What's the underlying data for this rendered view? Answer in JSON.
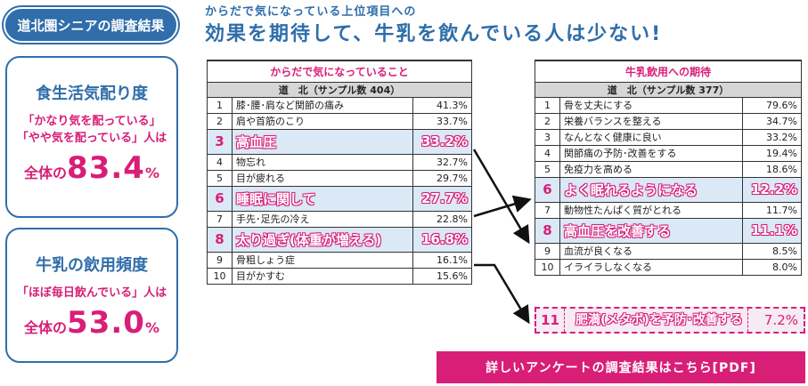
{
  "badge": "道北圏シニアの調査結果",
  "card1": {
    "title": "食生活気配り度",
    "line1": "「かなり気を配っている」",
    "line2": "「やや気を配っている」人は",
    "prefix": "全体の",
    "value": "83.4",
    "unit": "%"
  },
  "card2": {
    "title": "牛乳の飲用頻度",
    "line1": "「ほぼ毎日飲んでいる」人は",
    "prefix": "全体の",
    "value": "53.0",
    "unit": "%"
  },
  "header": {
    "sub": "からだで気になっている上位項目への",
    "main": "効果を期待して、牛乳を飲んでいる人は少ない!"
  },
  "tableA": {
    "title": "からだで気になっていること",
    "sample": "道　北（サンプル数 404）",
    "rows": [
      {
        "rank": "1",
        "label": "膝･腰･肩など関節の痛み",
        "value": "41.3%"
      },
      {
        "rank": "2",
        "label": "肩や首筋のこり",
        "value": "33.7%"
      },
      {
        "rank": "3",
        "label": "高血圧",
        "value": "33.2%"
      },
      {
        "rank": "4",
        "label": "物忘れ",
        "value": "32.7%"
      },
      {
        "rank": "5",
        "label": "目が疲れる",
        "value": "29.7%"
      },
      {
        "rank": "6",
        "label": "睡眠に関して",
        "value": "27.7%"
      },
      {
        "rank": "7",
        "label": "手先･足先の冷え",
        "value": "22.8%"
      },
      {
        "rank": "8",
        "label": "太り過ぎ(体重が増える)",
        "value": "16.8%"
      },
      {
        "rank": "9",
        "label": "骨粗しょう症",
        "value": "16.1%"
      },
      {
        "rank": "10",
        "label": "目がかすむ",
        "value": "15.6%"
      }
    ]
  },
  "tableB": {
    "title": "牛乳飲用への期待",
    "sample": "道　北（サンプル数 377）",
    "rows": [
      {
        "rank": "1",
        "label": "骨を丈夫にする",
        "value": "79.6%"
      },
      {
        "rank": "2",
        "label": "栄養バランスを整える",
        "value": "34.7%"
      },
      {
        "rank": "3",
        "label": "なんとなく健康に良い",
        "value": "33.2%"
      },
      {
        "rank": "4",
        "label": "関節痛の予防･改善をする",
        "value": "19.4%"
      },
      {
        "rank": "5",
        "label": "免疫力を高める",
        "value": "18.6%"
      },
      {
        "rank": "6",
        "label": "よく眠れるようになる",
        "value": "12.2%"
      },
      {
        "rank": "7",
        "label": "動物性たんぱく質がとれる",
        "value": "11.7%"
      },
      {
        "rank": "8",
        "label": "高血圧を改善する",
        "value": "11.1%"
      },
      {
        "rank": "9",
        "label": "血流が良くなる",
        "value": "8.5%"
      },
      {
        "rank": "10",
        "label": "イライラしなくなる",
        "value": "8.0%"
      }
    ],
    "extra": {
      "rank": "11",
      "label": "肥満(メタボ)を予防･改善する",
      "value": "7.2%"
    }
  },
  "pdf_button": "詳しいアンケートの調査結果はこちら[PDF]",
  "colors": {
    "brand_blue": "#2f6eaa",
    "accent_pink": "#d81e77",
    "highlight_bg": "#dbe9f7"
  }
}
